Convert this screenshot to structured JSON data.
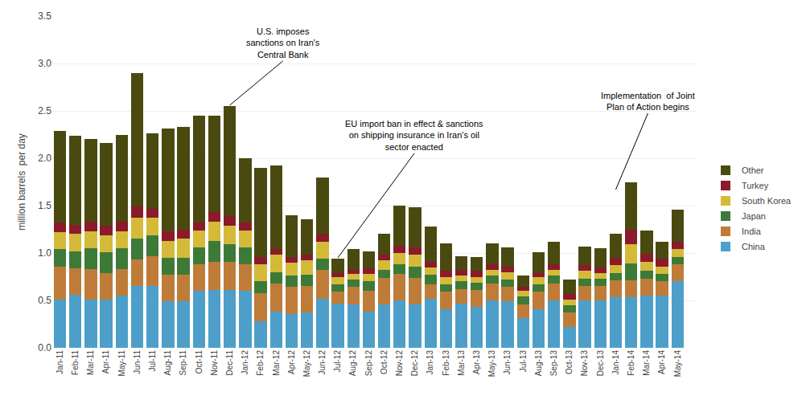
{
  "chart_data": {
    "type": "bar",
    "stacked": true,
    "categories": [
      "Jan-11",
      "Feb-11",
      "Mar-11",
      "Apr-11",
      "May-11",
      "Jun-11",
      "Jul-11",
      "Aug-11",
      "Sep-11",
      "Oct-11",
      "Nov-11",
      "Dec-11",
      "Jan-12",
      "Feb-12",
      "Mar-12",
      "Apr-12",
      "May-12",
      "Jun-12",
      "Jul-12",
      "Aug-12",
      "Sep-12",
      "Oct-12",
      "Nov-12",
      "Dec-12",
      "Jan-13",
      "Feb-13",
      "Mar-13",
      "Apr-13",
      "May-13",
      "Jun-13",
      "Jul-13",
      "Aug-13",
      "Sep-13",
      "Oct-13",
      "Nov-13",
      "Dec-13",
      "Jan-14",
      "Feb-14",
      "Mar-14",
      "Apr-14",
      "May-14"
    ],
    "series": [
      {
        "name": "China",
        "color": "#4d9fca",
        "values": [
          0.51,
          0.56,
          0.51,
          0.51,
          0.55,
          0.65,
          0.65,
          0.49,
          0.49,
          0.6,
          0.61,
          0.61,
          0.6,
          0.28,
          0.38,
          0.36,
          0.37,
          0.52,
          0.47,
          0.46,
          0.38,
          0.46,
          0.5,
          0.46,
          0.52,
          0.41,
          0.47,
          0.43,
          0.5,
          0.49,
          0.31,
          0.41,
          0.5,
          0.22,
          0.5,
          0.5,
          0.53,
          0.53,
          0.55,
          0.55,
          0.7
        ]
      },
      {
        "name": "India",
        "color": "#bf7c38",
        "values": [
          0.35,
          0.28,
          0.32,
          0.28,
          0.28,
          0.28,
          0.32,
          0.28,
          0.28,
          0.28,
          0.3,
          0.3,
          0.28,
          0.3,
          0.3,
          0.28,
          0.28,
          0.3,
          0.12,
          0.18,
          0.22,
          0.28,
          0.28,
          0.28,
          0.15,
          0.18,
          0.15,
          0.18,
          0.18,
          0.15,
          0.15,
          0.18,
          0.18,
          0.15,
          0.15,
          0.15,
          0.18,
          0.18,
          0.18,
          0.15,
          0.18
        ]
      },
      {
        "name": "Japan",
        "color": "#3d7a38",
        "values": [
          0.18,
          0.18,
          0.22,
          0.22,
          0.22,
          0.22,
          0.22,
          0.18,
          0.18,
          0.18,
          0.22,
          0.18,
          0.18,
          0.12,
          0.12,
          0.12,
          0.12,
          0.12,
          0.08,
          0.08,
          0.1,
          0.08,
          0.1,
          0.12,
          0.1,
          0.08,
          0.08,
          0.08,
          0.08,
          0.08,
          0.08,
          0.08,
          0.08,
          0.08,
          0.08,
          0.08,
          0.08,
          0.18,
          0.08,
          0.08,
          0.08
        ]
      },
      {
        "name": "South Korea",
        "color": "#d4ba38",
        "values": [
          0.18,
          0.18,
          0.18,
          0.18,
          0.18,
          0.22,
          0.18,
          0.18,
          0.2,
          0.18,
          0.2,
          0.2,
          0.18,
          0.18,
          0.18,
          0.14,
          0.15,
          0.18,
          0.08,
          0.06,
          0.08,
          0.1,
          0.12,
          0.12,
          0.08,
          0.08,
          0.06,
          0.06,
          0.06,
          0.08,
          0.06,
          0.08,
          0.06,
          0.06,
          0.08,
          0.06,
          0.08,
          0.2,
          0.1,
          0.08,
          0.08
        ]
      },
      {
        "name": "Turkey",
        "color": "#8b1a2a",
        "values": [
          0.1,
          0.1,
          0.1,
          0.1,
          0.1,
          0.12,
          0.1,
          0.1,
          0.1,
          0.08,
          0.1,
          0.1,
          0.08,
          0.08,
          0.06,
          0.06,
          0.06,
          0.08,
          0.04,
          0.04,
          0.06,
          0.06,
          0.08,
          0.08,
          0.06,
          0.06,
          0.06,
          0.06,
          0.06,
          0.06,
          0.04,
          0.04,
          0.06,
          0.06,
          0.06,
          0.06,
          0.08,
          0.16,
          0.08,
          0.08,
          0.08
        ]
      },
      {
        "name": "Other",
        "color": "#4a4a10",
        "values": [
          0.97,
          0.94,
          0.87,
          0.87,
          0.92,
          1.41,
          0.79,
          1.08,
          1.08,
          1.13,
          1.02,
          1.16,
          0.68,
          0.94,
          0.88,
          0.44,
          0.38,
          0.6,
          0.15,
          0.22,
          0.18,
          0.22,
          0.42,
          0.42,
          0.37,
          0.29,
          0.15,
          0.15,
          0.22,
          0.2,
          0.12,
          0.22,
          0.24,
          0.15,
          0.2,
          0.2,
          0.25,
          0.5,
          0.25,
          0.18,
          0.34
        ]
      }
    ],
    "ylabel": "million barrels  per day",
    "ylim": [
      0,
      3.5
    ],
    "yticks": [
      {
        "value": 0,
        "label": "0.0"
      },
      0.5,
      {
        "value": 1,
        "label": "1.0"
      },
      1.5,
      {
        "value": 2,
        "label": "2.0"
      },
      2.5,
      {
        "value": 3,
        "label": "3.0"
      },
      3.5
    ],
    "grid": true,
    "legend": "right",
    "annotations": [
      {
        "text": "U.S. imposes\nsanctions on Iran's\nCentral Bank",
        "x": "Dec-11",
        "y": 2.56
      },
      {
        "text": "EU import ban in effect & sanctions\non shipping insurance in Iran's oil\nsector enacted",
        "x": "Jul-12",
        "y": 0.95
      },
      {
        "text": "Implementation  of Joint\nPlan of Action begins",
        "x": "Jan-14",
        "y": 1.67
      }
    ]
  }
}
